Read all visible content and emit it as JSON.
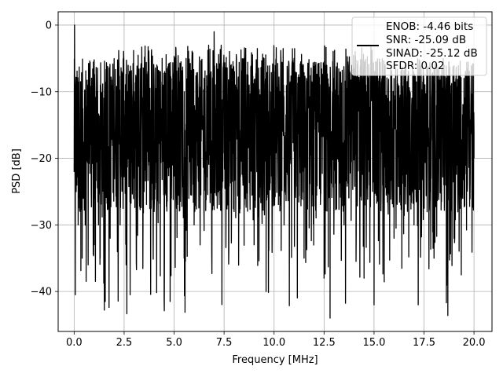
{
  "chart_data": {
    "type": "line",
    "title": "",
    "xlabel": "Frequency [MHz]",
    "ylabel": "PSD [dB]",
    "xlim": [
      -0.8,
      20.9
    ],
    "ylim": [
      -46,
      2
    ],
    "x_ticks": [
      0.0,
      2.5,
      5.0,
      7.5,
      10.0,
      12.5,
      15.0,
      17.5,
      20.0
    ],
    "x_tick_labels": [
      "0.0",
      "2.5",
      "5.0",
      "7.5",
      "10.0",
      "12.5",
      "15.0",
      "17.5",
      "20.0"
    ],
    "y_ticks": [
      0,
      -10,
      -20,
      -30,
      -40
    ],
    "y_tick_labels": [
      "0",
      "−10",
      "−20",
      "−30",
      "−40"
    ],
    "grid": true,
    "legend_position": "top-right",
    "legend_lines": [
      "ENOB: -4.46 bits",
      "SNR: -25.09 dB",
      "SINAD: -25.12 dB",
      "SFDR: 0.02"
    ],
    "series": [
      {
        "color": "#000000",
        "x": [
          0.0,
          0.02,
          0.04,
          0.06,
          0.08,
          0.1,
          0.15,
          0.2,
          0.25,
          0.3,
          0.35,
          0.4,
          0.5,
          0.6,
          0.65,
          0.7,
          0.8,
          1.0,
          1.2,
          1.3,
          1.5,
          1.8,
          2.0,
          2.3,
          2.5,
          2.6,
          2.7,
          2.8,
          3.0,
          3.5,
          3.5,
          4.0,
          4.4,
          4.5,
          4.7,
          4.8,
          5.0,
          5.5,
          5.6,
          6.0,
          6.5,
          7.0,
          7.1,
          7.5,
          8.0,
          8.5,
          9.0,
          9.5,
          9.6,
          10.0,
          10.5,
          11.0,
          11.5,
          12.0,
          12.5,
          12.8,
          13.0,
          13.5,
          14.0,
          14.5,
          15.0,
          15.5,
          16.0,
          16.5,
          17.0,
          17.5,
          18.0,
          18.5,
          19.0,
          19.5,
          20.0
        ],
        "y": [
          -22,
          0,
          -15,
          -40.5,
          -10,
          -25,
          -12,
          -30,
          -15,
          -28,
          -13,
          -35,
          -20,
          -38.5,
          -12,
          -36,
          -18,
          -33,
          -15,
          -35,
          -18,
          -32,
          -12,
          -30,
          -14,
          -36,
          -8,
          -40.5,
          -10,
          -25,
          -7,
          -28,
          -5,
          -41,
          -8,
          -41.5,
          -6,
          -35,
          -5,
          -30,
          -8,
          -1,
          -25,
          -8,
          -28,
          -5,
          -33,
          -5,
          -40,
          -7,
          -30,
          -5,
          -35,
          -7,
          -38,
          -44,
          -8,
          -30,
          -7,
          -38,
          -42,
          -6,
          -32,
          -8,
          -30,
          -10,
          -35,
          -6,
          -32,
          -8,
          -20
        ]
      }
    ],
    "noise": {
      "x_start": 0.0,
      "x_end": 20.0,
      "samples": 2200,
      "median": -15,
      "upper": -5,
      "lower": -28,
      "spike_min": -44
    }
  }
}
